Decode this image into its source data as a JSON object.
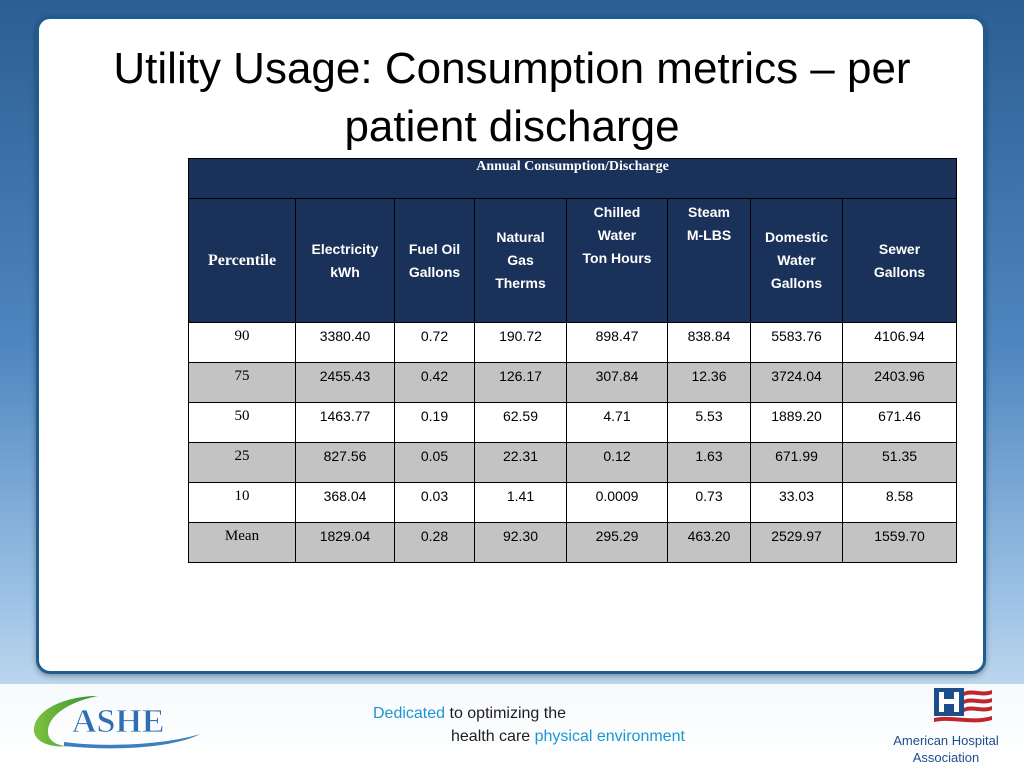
{
  "slide": {
    "title_line1": "Utility Usage:  Consumption metrics – per",
    "title_line2": "patient discharge"
  },
  "table": {
    "banner": "Annual Consumption/Discharge",
    "headers": [
      {
        "lines": [
          "Percentile"
        ]
      },
      {
        "lines": [
          "Electricity",
          "kWh"
        ]
      },
      {
        "lines": [
          "Fuel Oil",
          "Gallons"
        ]
      },
      {
        "lines": [
          "Natural",
          "Gas",
          "Therms"
        ]
      },
      {
        "lines": [
          "Chilled",
          "Water",
          "Ton Hours"
        ]
      },
      {
        "lines": [
          "Steam",
          "M-LBS"
        ]
      },
      {
        "lines": [
          "Domestic",
          "Water",
          "Gallons"
        ]
      },
      {
        "lines": [
          "Sewer",
          "Gallons"
        ]
      }
    ],
    "rows": [
      [
        "90",
        "3380.40",
        "0.72",
        "190.72",
        "898.47",
        "838.84",
        "5583.76",
        "4106.94"
      ],
      [
        "75",
        "2455.43",
        "0.42",
        "126.17",
        "307.84",
        "12.36",
        "3724.04",
        "2403.96"
      ],
      [
        "50",
        "1463.77",
        "0.19",
        "62.59",
        "4.71",
        "5.53",
        "1889.20",
        "671.46"
      ],
      [
        "25",
        "827.56",
        "0.05",
        "22.31",
        "0.12",
        "1.63",
        "671.99",
        "51.35"
      ],
      [
        "10",
        "368.04",
        "0.03",
        "1.41",
        "0.0009",
        "0.73",
        "33.03",
        "8.58"
      ],
      [
        "Mean",
        "1829.04",
        "0.28",
        "92.30",
        "295.29",
        "463.20",
        "2529.97",
        "1559.70"
      ]
    ]
  },
  "footer": {
    "ashe_logo_text": "ASHE",
    "tagline_word1": "Dedicated",
    "tagline_rest1": " to optimizing the",
    "tagline_line2_start": "health care ",
    "tagline_line2_blue": "physical environment",
    "aha_line1": "American Hospital",
    "aha_line2": "Association"
  },
  "colors": {
    "header_navy": "#1a3159",
    "row_gray": "#c3c3c3",
    "card_border": "#1f5d8e",
    "tagline_blue": "#1e95d3",
    "aha_blue": "#1d4e8c",
    "aha_red": "#c0272d"
  }
}
